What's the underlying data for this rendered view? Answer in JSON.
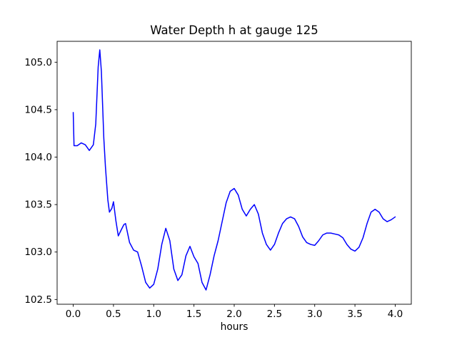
{
  "chart_data": {
    "type": "line",
    "title": "Water Depth h at gauge 125",
    "xlabel": "hours",
    "ylabel": "",
    "line_color": "#0000ff",
    "line_width": 1.5,
    "grid": false,
    "legend": "none",
    "xlim": [
      -0.2,
      4.2
    ],
    "ylim": [
      102.45,
      105.22
    ],
    "xticks": [
      0.0,
      0.5,
      1.0,
      1.5,
      2.0,
      2.5,
      3.0,
      3.5,
      4.0
    ],
    "xtick_labels": [
      "0.0",
      "0.5",
      "1.0",
      "1.5",
      "2.0",
      "2.5",
      "3.0",
      "3.5",
      "4.0"
    ],
    "yticks": [
      102.5,
      103.0,
      103.5,
      104.0,
      104.5,
      105.0
    ],
    "ytick_labels": [
      "102.5",
      "103.0",
      "103.5",
      "104.0",
      "104.5",
      "105.0"
    ],
    "x": [
      0.0,
      0.01,
      0.05,
      0.1,
      0.15,
      0.2,
      0.25,
      0.28,
      0.31,
      0.33,
      0.35,
      0.38,
      0.4,
      0.43,
      0.45,
      0.48,
      0.5,
      0.53,
      0.56,
      0.6,
      0.63,
      0.65,
      0.7,
      0.75,
      0.8,
      0.85,
      0.9,
      0.95,
      1.0,
      1.05,
      1.1,
      1.15,
      1.2,
      1.25,
      1.3,
      1.35,
      1.4,
      1.45,
      1.5,
      1.55,
      1.6,
      1.65,
      1.7,
      1.75,
      1.8,
      1.85,
      1.9,
      1.95,
      2.0,
      2.05,
      2.1,
      2.15,
      2.2,
      2.25,
      2.3,
      2.35,
      2.4,
      2.45,
      2.5,
      2.55,
      2.6,
      2.65,
      2.7,
      2.75,
      2.8,
      2.85,
      2.9,
      2.95,
      3.0,
      3.05,
      3.1,
      3.15,
      3.2,
      3.25,
      3.3,
      3.35,
      3.4,
      3.45,
      3.5,
      3.55,
      3.6,
      3.65,
      3.7,
      3.75,
      3.8,
      3.85,
      3.9,
      3.95,
      4.0
    ],
    "y": [
      104.47,
      104.12,
      104.12,
      104.15,
      104.13,
      104.07,
      104.13,
      104.35,
      104.95,
      105.13,
      104.9,
      104.2,
      103.9,
      103.55,
      103.42,
      103.46,
      103.53,
      103.33,
      103.17,
      103.24,
      103.29,
      103.3,
      103.1,
      103.02,
      103.0,
      102.85,
      102.68,
      102.62,
      102.66,
      102.82,
      103.08,
      103.25,
      103.12,
      102.82,
      102.7,
      102.76,
      102.96,
      103.06,
      102.95,
      102.88,
      102.68,
      102.6,
      102.76,
      102.96,
      103.12,
      103.32,
      103.52,
      103.64,
      103.67,
      103.6,
      103.45,
      103.38,
      103.45,
      103.5,
      103.4,
      103.2,
      103.08,
      103.02,
      103.08,
      103.2,
      103.3,
      103.35,
      103.37,
      103.35,
      103.27,
      103.16,
      103.1,
      103.08,
      103.07,
      103.12,
      103.18,
      103.2,
      103.2,
      103.19,
      103.18,
      103.15,
      103.08,
      103.03,
      103.01,
      103.05,
      103.15,
      103.3,
      103.42,
      103.45,
      103.42,
      103.35,
      103.32,
      103.34,
      103.37
    ]
  }
}
